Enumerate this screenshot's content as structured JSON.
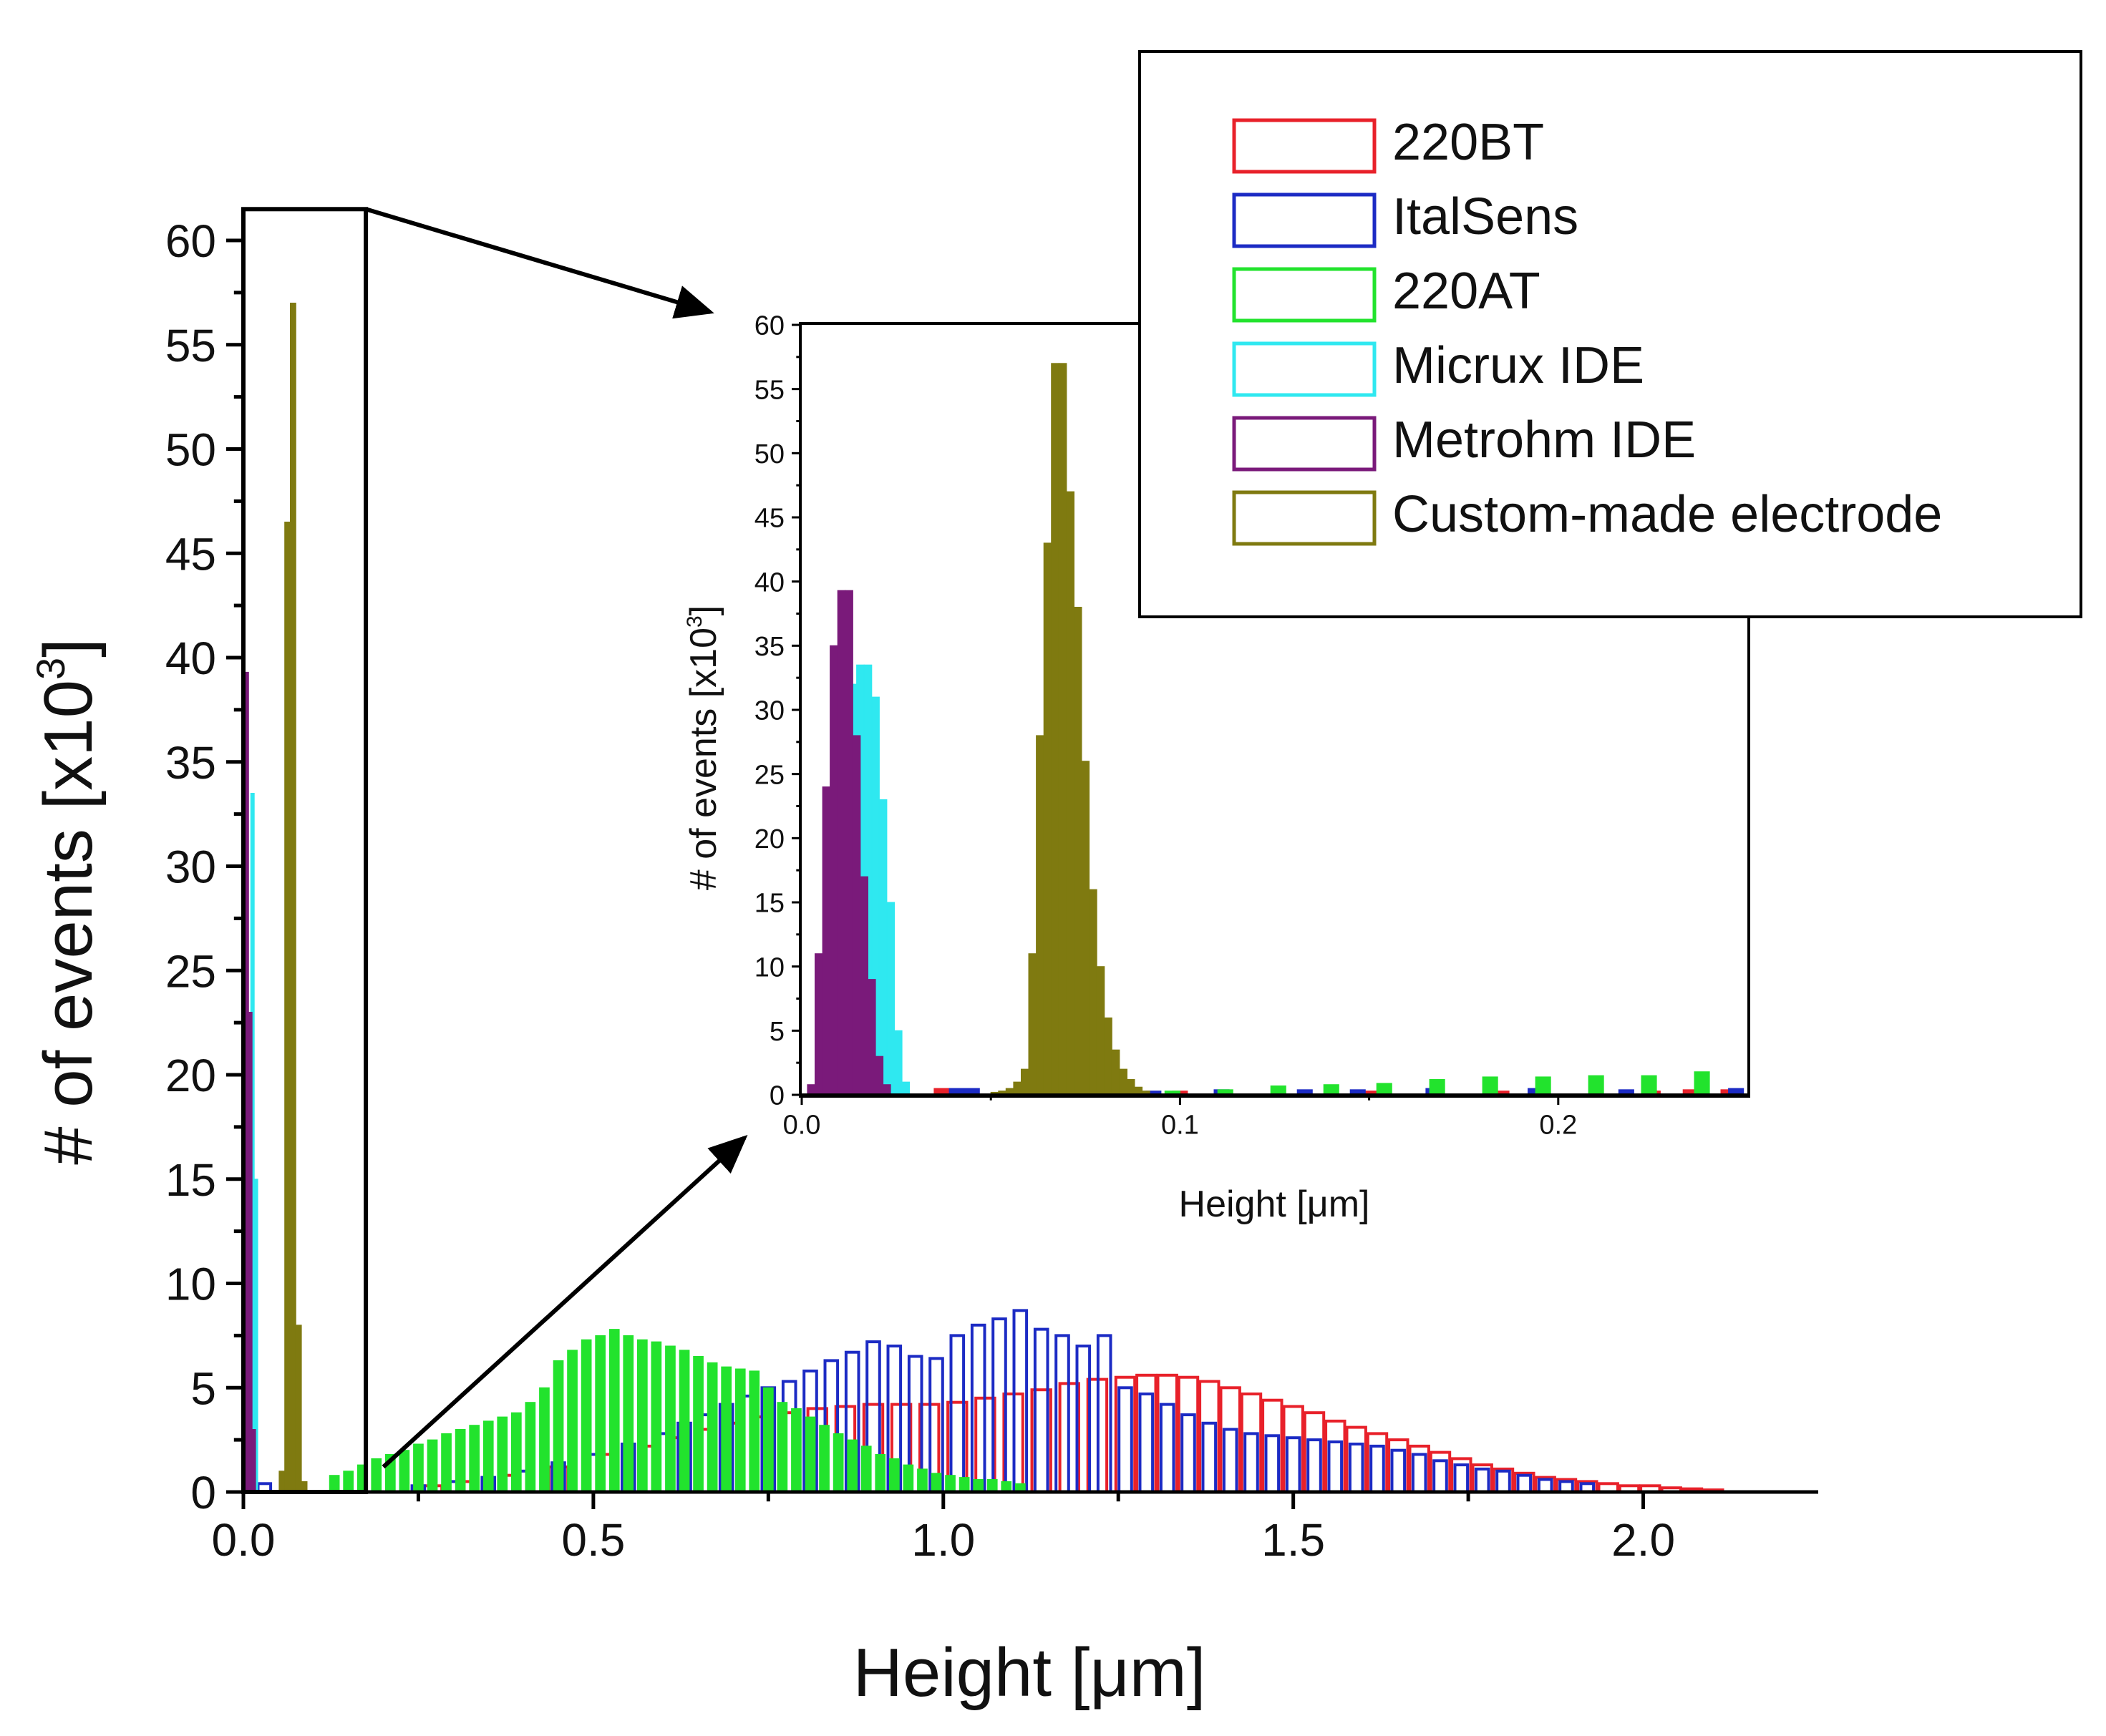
{
  "chart_data": [
    {
      "id": "main",
      "type": "bar",
      "xlabel": "Height [μm]",
      "ylabel_base": "# of events [x10",
      "ylabel_sup": "3",
      "ylabel_close": "]",
      "xlim": [
        0,
        2.25
      ],
      "ylim": [
        0,
        60
      ],
      "xticks": [
        0.0,
        0.5,
        1.0,
        1.5,
        2.0
      ],
      "xtick_labels": [
        "0.0",
        "0.5",
        "1.0",
        "1.5",
        "2.0"
      ],
      "yticks": [
        0,
        5,
        10,
        15,
        20,
        25,
        30,
        35,
        40,
        45,
        50,
        55,
        60
      ],
      "ytick_labels": [
        "0",
        "5",
        "10",
        "15",
        "20",
        "25",
        "30",
        "35",
        "40",
        "45",
        "50",
        "55",
        "60"
      ],
      "zoom_region": {
        "x": [
          0,
          0.175
        ],
        "y": [
          0,
          61.5
        ]
      },
      "series": [
        {
          "name": "220BT",
          "color": "#e8212a",
          "style": "outline",
          "bin_width": 0.027,
          "x": [
            0.27,
            0.32,
            0.38,
            0.45,
            0.52,
            0.58,
            0.62,
            0.66,
            0.7,
            0.74,
            0.78,
            0.82,
            0.86,
            0.9,
            0.94,
            0.98,
            1.02,
            1.06,
            1.1,
            1.14,
            1.18,
            1.22,
            1.26,
            1.29,
            1.32,
            1.35,
            1.38,
            1.41,
            1.44,
            1.47,
            1.5,
            1.53,
            1.56,
            1.59,
            1.62,
            1.65,
            1.68,
            1.71,
            1.74,
            1.77,
            1.8,
            1.83,
            1.86,
            1.89,
            1.92,
            1.95,
            1.98,
            2.01,
            2.04,
            2.07,
            2.1
          ],
          "values": [
            0.3,
            0.5,
            0.8,
            1.2,
            1.8,
            2.2,
            2.6,
            3.0,
            3.3,
            3.6,
            3.8,
            4.0,
            4.1,
            4.2,
            4.2,
            4.2,
            4.3,
            4.5,
            4.7,
            4.9,
            5.2,
            5.4,
            5.5,
            5.6,
            5.6,
            5.5,
            5.3,
            5.0,
            4.7,
            4.4,
            4.1,
            3.8,
            3.4,
            3.1,
            2.8,
            2.5,
            2.2,
            1.9,
            1.6,
            1.3,
            1.1,
            0.9,
            0.7,
            0.6,
            0.5,
            0.4,
            0.3,
            0.3,
            0.2,
            0.15,
            0.1
          ]
        },
        {
          "name": "ItalSens",
          "color": "#1c2bc4",
          "style": "outline",
          "bin_width": 0.018,
          "x": [
            0.03,
            0.25,
            0.3,
            0.35,
            0.4,
            0.45,
            0.5,
            0.55,
            0.6,
            0.63,
            0.66,
            0.69,
            0.72,
            0.75,
            0.78,
            0.81,
            0.84,
            0.87,
            0.9,
            0.93,
            0.96,
            0.99,
            1.02,
            1.05,
            1.08,
            1.11,
            1.14,
            1.17,
            1.2,
            1.23,
            1.26,
            1.29,
            1.32,
            1.35,
            1.38,
            1.41,
            1.44,
            1.47,
            1.5,
            1.53,
            1.56,
            1.59,
            1.62,
            1.65,
            1.68,
            1.71,
            1.74,
            1.77,
            1.8,
            1.83,
            1.86,
            1.89,
            1.92
          ],
          "values": [
            0.4,
            0.3,
            0.5,
            0.7,
            1.0,
            1.4,
            1.8,
            2.3,
            2.8,
            3.3,
            3.7,
            4.2,
            4.6,
            5.0,
            5.3,
            5.8,
            6.3,
            6.7,
            7.2,
            7.0,
            6.5,
            6.4,
            7.5,
            8.0,
            8.3,
            8.7,
            7.8,
            7.5,
            7.0,
            7.5,
            5.0,
            4.7,
            4.2,
            3.7,
            3.3,
            3.0,
            2.8,
            2.7,
            2.6,
            2.5,
            2.4,
            2.3,
            2.2,
            2.0,
            1.8,
            1.5,
            1.3,
            1.1,
            1.0,
            0.8,
            0.6,
            0.5,
            0.4
          ]
        },
        {
          "name": "220AT",
          "color": "#22e32d",
          "style": "filled",
          "bin_width": 0.014,
          "x": [
            0.13,
            0.15,
            0.17,
            0.19,
            0.21,
            0.23,
            0.25,
            0.27,
            0.29,
            0.31,
            0.33,
            0.35,
            0.37,
            0.39,
            0.41,
            0.43,
            0.45,
            0.47,
            0.49,
            0.51,
            0.53,
            0.55,
            0.57,
            0.59,
            0.61,
            0.63,
            0.65,
            0.67,
            0.69,
            0.71,
            0.73,
            0.75,
            0.77,
            0.79,
            0.81,
            0.83,
            0.85,
            0.87,
            0.89,
            0.91,
            0.93,
            0.95,
            0.97,
            0.99,
            1.01,
            1.03,
            1.05,
            1.07,
            1.09,
            1.11
          ],
          "values": [
            0.8,
            1.0,
            1.3,
            1.6,
            1.8,
            2.0,
            2.3,
            2.5,
            2.8,
            3.0,
            3.2,
            3.4,
            3.6,
            3.8,
            4.3,
            5.0,
            6.3,
            6.8,
            7.3,
            7.5,
            7.8,
            7.5,
            7.3,
            7.2,
            7.0,
            6.8,
            6.5,
            6.2,
            6.0,
            5.9,
            5.8,
            5.0,
            4.3,
            4.0,
            3.6,
            3.2,
            2.8,
            2.5,
            2.2,
            1.8,
            1.6,
            1.3,
            1.1,
            0.9,
            0.8,
            0.7,
            0.6,
            0.6,
            0.5,
            0.4
          ]
        },
        {
          "name": "Micrux IDE",
          "color": "#2fe8f0",
          "style": "filled",
          "bin_width": 0.005,
          "x": [
            0.003,
            0.008,
            0.013,
            0.018
          ],
          "values": [
            5.0,
            23.0,
            33.5,
            15.0
          ]
        },
        {
          "name": "Metrohm IDE",
          "color": "#7a1a7a",
          "style": "filled",
          "bin_width": 0.005,
          "x": [
            0.0,
            0.005,
            0.01,
            0.015
          ],
          "values": [
            24.0,
            39.3,
            23.0,
            3.0
          ]
        },
        {
          "name": "Custom-made electrode",
          "color": "#7f7a10",
          "style": "filled",
          "bin_width": 0.008,
          "x": [
            0.055,
            0.063,
            0.071,
            0.079,
            0.087
          ],
          "values": [
            1.0,
            46.5,
            57.0,
            8.0,
            0.5
          ]
        }
      ]
    },
    {
      "id": "inset",
      "type": "bar",
      "xlabel": "Height [μm]",
      "ylabel_base": "# of events [x10",
      "ylabel_sup": "3",
      "ylabel_close": "]",
      "xlim": [
        0,
        0.25
      ],
      "ylim": [
        0,
        60
      ],
      "xticks": [
        0.0,
        0.1,
        0.2
      ],
      "xtick_labels": [
        "0.0",
        "0.1",
        "0.2"
      ],
      "yticks": [
        0,
        5,
        10,
        15,
        20,
        25,
        30,
        35,
        40,
        45,
        50,
        55,
        60
      ],
      "ytick_labels": [
        "0",
        "5",
        "10",
        "15",
        "20",
        "25",
        "30",
        "35",
        "40",
        "45",
        "50",
        "55",
        "60"
      ],
      "series": [
        {
          "name": "220BT",
          "color": "#e8212a",
          "bin_width": 0.004,
          "x": [
            0.037,
            0.041,
            0.1,
            0.15,
            0.185,
            0.225,
            0.235,
            0.245
          ],
          "values": [
            0.5,
            0.5,
            0.3,
            0.3,
            0.3,
            0.3,
            0.4,
            0.4
          ]
        },
        {
          "name": "ItalSens",
          "color": "#1c2bc4",
          "bin_width": 0.004,
          "x": [
            0.041,
            0.045,
            0.093,
            0.111,
            0.133,
            0.147,
            0.167,
            0.194,
            0.218,
            0.247
          ],
          "values": [
            0.5,
            0.5,
            0.3,
            0.4,
            0.4,
            0.4,
            0.5,
            0.5,
            0.4,
            0.5
          ]
        },
        {
          "name": "220AT",
          "color": "#22e32d",
          "bin_width": 0.004,
          "x": [
            0.098,
            0.112,
            0.126,
            0.14,
            0.154,
            0.168,
            0.182,
            0.196,
            0.21,
            0.224,
            0.238
          ],
          "values": [
            0.3,
            0.4,
            0.7,
            0.8,
            0.9,
            1.2,
            1.4,
            1.4,
            1.5,
            1.5,
            1.8
          ]
        },
        {
          "name": "Micrux IDE",
          "color": "#2fe8f0",
          "bin_width": 0.002,
          "x": [
            0.0035,
            0.0055,
            0.0075,
            0.0095,
            0.0115,
            0.0135,
            0.0155,
            0.0175,
            0.0195,
            0.0215,
            0.0235,
            0.0255,
            0.0275
          ],
          "values": [
            0.5,
            5.0,
            14.0,
            22.0,
            29.0,
            32.0,
            33.5,
            33.5,
            31.0,
            23.0,
            15.0,
            5.0,
            1.0
          ]
        },
        {
          "name": "Metrohm IDE",
          "color": "#7a1a7a",
          "bin_width": 0.002,
          "x": [
            0.0025,
            0.0045,
            0.0065,
            0.0085,
            0.0105,
            0.0125,
            0.0145,
            0.0165,
            0.0185,
            0.0205,
            0.0225
          ],
          "values": [
            0.8,
            11.0,
            24.0,
            35.0,
            39.3,
            39.3,
            28.0,
            17.0,
            9.0,
            3.0,
            0.8
          ]
        },
        {
          "name": "Custom-made electrode",
          "color": "#7f7a10",
          "bin_width": 0.002,
          "x": [
            0.051,
            0.053,
            0.055,
            0.057,
            0.059,
            0.061,
            0.063,
            0.065,
            0.067,
            0.069,
            0.071,
            0.073,
            0.075,
            0.077,
            0.079,
            0.081,
            0.083,
            0.085,
            0.087,
            0.089,
            0.091
          ],
          "values": [
            0.2,
            0.3,
            0.5,
            1.0,
            2.0,
            11.0,
            28.0,
            43.0,
            57.0,
            57.0,
            47.0,
            38.0,
            26.0,
            16.0,
            10.0,
            6.0,
            3.5,
            2.0,
            1.2,
            0.6,
            0.3
          ]
        }
      ]
    }
  ],
  "legend": {
    "placement": "top-right",
    "items": [
      {
        "label": "220BT",
        "color": "#e8212a"
      },
      {
        "label": "ItalSens",
        "color": "#1c2bc4"
      },
      {
        "label": "220AT",
        "color": "#22e32d"
      },
      {
        "label": "Micrux IDE",
        "color": "#2fe8f0"
      },
      {
        "label": "Metrohm IDE",
        "color": "#7a1a7a"
      },
      {
        "label": "Custom-made electrode",
        "color": "#7f7a10"
      }
    ]
  }
}
